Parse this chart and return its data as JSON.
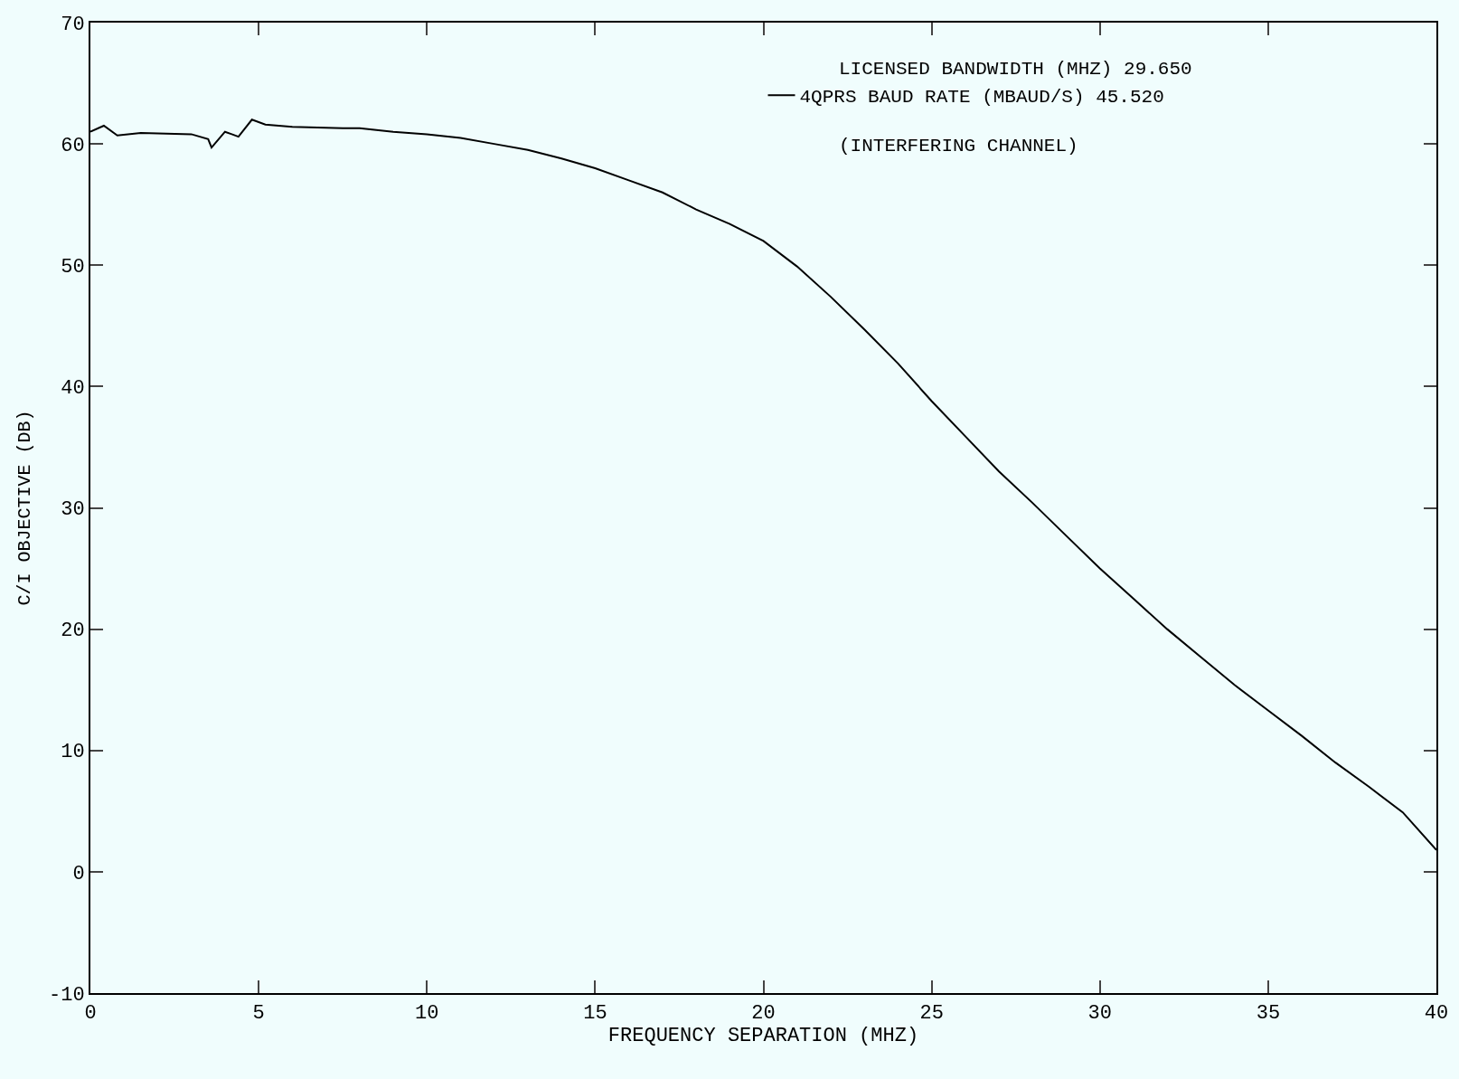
{
  "chart_data": {
    "type": "line",
    "xlabel": "FREQUENCY SEPARATION (MHZ)",
    "ylabel": "C/I OBJECTIVE (DB)",
    "x": [
      0,
      0.4,
      0.8,
      1.5,
      3.0,
      3.5,
      3.6,
      4.0,
      4.4,
      4.8,
      5.2,
      6,
      7.5,
      8,
      9,
      10,
      11,
      12,
      13,
      14,
      15,
      16,
      17,
      18,
      19,
      20,
      21,
      22,
      23,
      24,
      25,
      26,
      27,
      28,
      29,
      30,
      31,
      32,
      33,
      34,
      35,
      36,
      37,
      38,
      39,
      40
    ],
    "series": [
      {
        "name": "4QPRS BAUD RATE (MBAUD/S) 45.520",
        "color": "#000000",
        "values": [
          61.0,
          61.5,
          60.7,
          60.9,
          60.8,
          60.4,
          59.7,
          61.0,
          60.6,
          62.0,
          61.6,
          61.4,
          61.3,
          61.3,
          61.0,
          60.8,
          60.5,
          60.0,
          59.5,
          58.8,
          58.0,
          57.0,
          56.0,
          54.6,
          53.4,
          52.0,
          49.9,
          47.4,
          44.7,
          41.9,
          38.8,
          35.9,
          33.0,
          30.4,
          27.7,
          25.0,
          22.5,
          20.0,
          17.7,
          15.4,
          13.3,
          11.2,
          9.0,
          7.0,
          4.9,
          1.8
        ]
      }
    ],
    "annotations": [
      "LICENSED BANDWIDTH (MHZ) 29.650",
      "(INTERFERING CHANNEL)"
    ],
    "xlim": [
      0,
      40
    ],
    "xticks": [
      0,
      5,
      10,
      15,
      20,
      25,
      30,
      35,
      40
    ],
    "ylim": [
      -10,
      70
    ],
    "yticks": [
      -10,
      0,
      10,
      20,
      30,
      40,
      50,
      60,
      70
    ],
    "legend": "top right",
    "grid": false,
    "marker": "none",
    "line_style": "solid"
  }
}
